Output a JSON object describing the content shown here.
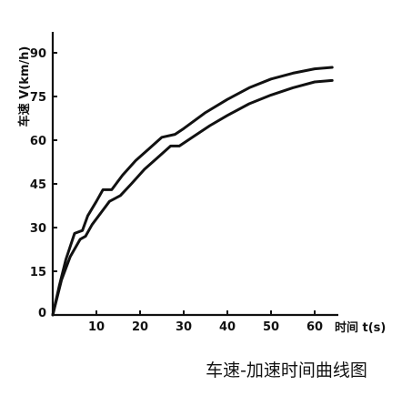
{
  "chart_data": {
    "type": "line",
    "title": "车速-加速时间曲线图",
    "xlabel": "时间 t(s)",
    "ylabel": "车速 V(km/h)",
    "xlim": [
      0,
      65
    ],
    "ylim": [
      0,
      95
    ],
    "xticks": [
      0,
      10,
      20,
      30,
      40,
      50,
      60
    ],
    "yticks": [
      0,
      15,
      30,
      45,
      60,
      75,
      90
    ],
    "grid": false,
    "series": [
      {
        "points": [
          [
            0,
            0
          ],
          [
            1.5,
            10
          ],
          [
            3,
            19
          ],
          [
            5,
            28
          ],
          [
            6.8,
            29
          ],
          [
            8,
            34
          ],
          [
            10,
            39
          ],
          [
            11.5,
            43
          ],
          [
            13.5,
            43
          ],
          [
            16,
            48
          ],
          [
            19,
            53
          ],
          [
            22,
            57
          ],
          [
            25,
            61
          ],
          [
            28,
            62
          ],
          [
            30,
            64
          ],
          [
            35,
            69.5
          ],
          [
            40,
            74
          ],
          [
            45,
            78
          ],
          [
            50,
            81
          ],
          [
            55,
            83
          ],
          [
            60,
            84.5
          ],
          [
            64,
            85
          ]
        ]
      },
      {
        "points": [
          [
            0,
            0
          ],
          [
            2,
            12
          ],
          [
            4,
            20
          ],
          [
            6.3,
            26
          ],
          [
            7.5,
            27
          ],
          [
            9,
            31
          ],
          [
            11,
            35
          ],
          [
            13,
            39
          ],
          [
            15.5,
            41
          ],
          [
            18,
            45
          ],
          [
            21,
            50
          ],
          [
            24,
            54
          ],
          [
            27,
            58
          ],
          [
            29,
            58
          ],
          [
            32,
            61
          ],
          [
            36,
            65
          ],
          [
            40,
            68.5
          ],
          [
            45,
            72.5
          ],
          [
            50,
            75.5
          ],
          [
            55,
            78
          ],
          [
            60,
            80
          ],
          [
            64,
            80.5
          ]
        ]
      }
    ]
  }
}
